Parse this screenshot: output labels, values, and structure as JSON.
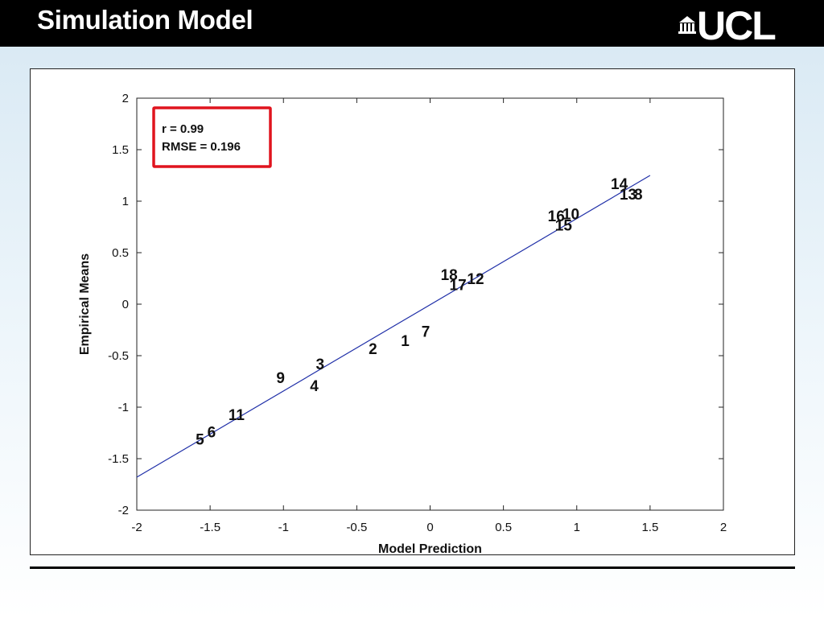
{
  "header": {
    "title": "Simulation Model",
    "logo_text": "UCL"
  },
  "colors": {
    "header_bg": "#000000",
    "fit_line": "#1f2fa8",
    "stats_box_border": "#e0141e"
  },
  "chart_data": {
    "type": "scatter",
    "title": "",
    "xlabel": "Model Prediction",
    "ylabel": "Empirical Means",
    "xlim": [
      -2,
      2
    ],
    "ylim": [
      -2,
      2
    ],
    "xticks": [
      "-2",
      "-1.5",
      "-1",
      "-0.5",
      "0",
      "0.5",
      "1",
      "1.5",
      "2"
    ],
    "yticks": [
      "2",
      "1.5",
      "1",
      "0.5",
      "0",
      "-0.5",
      "-1",
      "-1.5",
      "-2"
    ],
    "grid": false,
    "annotation": {
      "r_text": "r = 0.99",
      "rmse_text": "RMSE = 0.196"
    },
    "fit_line": {
      "x": [
        -2,
        1.5
      ],
      "y": [
        -1.68,
        1.25
      ]
    },
    "points": [
      {
        "label": "1",
        "x": -0.17,
        "y": -0.35
      },
      {
        "label": "2",
        "x": -0.39,
        "y": -0.43
      },
      {
        "label": "3",
        "x": -0.75,
        "y": -0.58
      },
      {
        "label": "4",
        "x": -0.79,
        "y": -0.79
      },
      {
        "label": "5",
        "x": -1.57,
        "y": -1.31
      },
      {
        "label": "6",
        "x": -1.49,
        "y": -1.24
      },
      {
        "label": "7",
        "x": -0.03,
        "y": -0.26
      },
      {
        "label": "8",
        "x": 1.42,
        "y": 1.07
      },
      {
        "label": "9",
        "x": -1.02,
        "y": -0.71
      },
      {
        "label": "10",
        "x": 0.96,
        "y": 0.88
      },
      {
        "label": "11",
        "x": -1.32,
        "y": -1.07
      },
      {
        "label": "12",
        "x": 0.31,
        "y": 0.25
      },
      {
        "label": "13",
        "x": 1.35,
        "y": 1.07
      },
      {
        "label": "14",
        "x": 1.29,
        "y": 1.17
      },
      {
        "label": "15",
        "x": 0.91,
        "y": 0.77
      },
      {
        "label": "16",
        "x": 0.86,
        "y": 0.86
      },
      {
        "label": "17",
        "x": 0.19,
        "y": 0.19
      },
      {
        "label": "18",
        "x": 0.13,
        "y": 0.29
      }
    ]
  }
}
